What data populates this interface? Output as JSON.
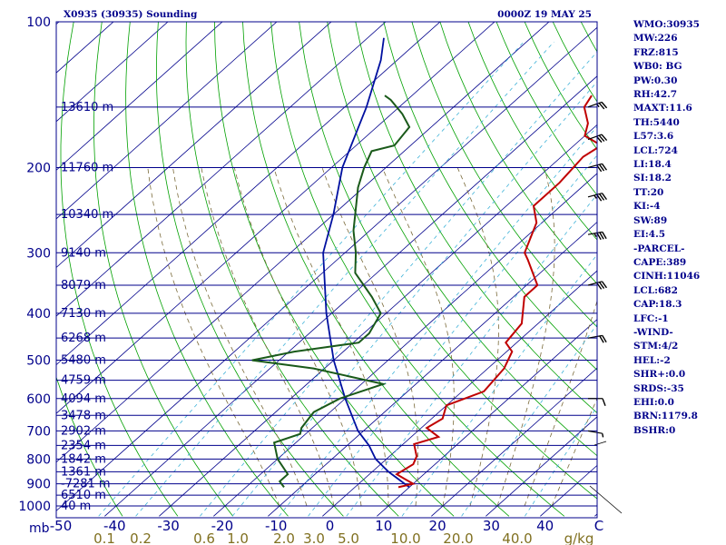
{
  "header": {
    "left": "X0935 (30935) Sounding",
    "right": "0000Z 19 MAY 25"
  },
  "indices": [
    "WMO:30935",
    "MW:226",
    "FRZ:815",
    "WB0: BG",
    "PW:0.30",
    "RH:42.7",
    "MAXT:11.6",
    "TH:5440",
    "L57:3.6",
    "LCL:724",
    "LI:18.4",
    "SI:18.2",
    "TT:20",
    "KI:-4",
    "SW:89",
    "EI:4.5",
    "-PARCEL-",
    "CAPE:389",
    "CINH:11046",
    "LCL:682",
    "CAP:18.3",
    "LFC:-1",
    "-WIND-",
    "STM:4/2",
    "HEL:-2",
    "SHR+:0.0",
    "SRDS:-35",
    "EHI:0.0",
    "BRN:1179.8",
    "BSHR:0"
  ],
  "colors": {
    "frame": "#00008b",
    "isobar": "#00008b",
    "isotherm": "#00008b",
    "dry_adiabat": "#00a000",
    "moist_adiabat": "#7a6a3a",
    "mixing_ratio": "#3fb2d8",
    "temperature": "#c00000",
    "dewpoint": "#1a5a1a",
    "parcel": "#0010a0",
    "wind": "#000000",
    "ticks_temp": "#00008b",
    "ticks_mix": "#807020"
  },
  "chart_data": {
    "type": "skew-t",
    "pressure_axis_labels": [
      "100",
      "200",
      "300",
      "400",
      "500",
      "600",
      "700",
      "800",
      "900",
      "1000"
    ],
    "pressure_axis_units": "mb",
    "temperature_axis_labels": [
      "-50",
      "-40",
      "-30",
      "-20",
      "-10",
      "0",
      "10",
      "20",
      "30",
      "40",
      "C"
    ],
    "mixing_ratio_labels": [
      "0.1",
      "0.2",
      "0.6",
      "1.0",
      "2.0",
      "3.0",
      "5.0",
      "10.0",
      "20.0",
      "40.0",
      "g/kg"
    ],
    "heights": [
      {
        "p": 150,
        "label": "13610 m"
      },
      {
        "p": 200,
        "label": "11760 m"
      },
      {
        "p": 250,
        "label": "10340 m"
      },
      {
        "p": 300,
        "label": "9140 m"
      },
      {
        "p": 350,
        "label": "8079 m"
      },
      {
        "p": 400,
        "label": "7130 m"
      },
      {
        "p": 450,
        "label": "6268 m"
      },
      {
        "p": 500,
        "label": "5480 m"
      },
      {
        "p": 550,
        "label": "4759 m"
      },
      {
        "p": 600,
        "label": "4094 m"
      },
      {
        "p": 650,
        "label": "3478 m"
      },
      {
        "p": 700,
        "label": "2902 m"
      },
      {
        "p": 750,
        "label": "2354 m"
      },
      {
        "p": 800,
        "label": "1842 m"
      },
      {
        "p": 850,
        "label": "1361 m"
      },
      {
        "p": 900,
        "label": "-7281 m"
      },
      {
        "p": 950,
        "label": "6510 m"
      },
      {
        "p": 1000,
        "label": "40 m"
      }
    ],
    "temperature": [
      [
        915,
        8
      ],
      [
        900,
        10
      ],
      [
        880,
        7.5
      ],
      [
        860,
        5
      ],
      [
        820,
        6
      ],
      [
        790,
        5
      ],
      [
        745,
        2
      ],
      [
        720,
        5
      ],
      [
        690,
        1
      ],
      [
        660,
        2
      ],
      [
        620,
        0
      ],
      [
        580,
        4
      ],
      [
        520,
        3
      ],
      [
        480,
        1
      ],
      [
        460,
        -2
      ],
      [
        420,
        -3
      ],
      [
        370,
        -8
      ],
      [
        350,
        -8
      ],
      [
        310,
        -15
      ],
      [
        300,
        -17
      ],
      [
        260,
        -21
      ],
      [
        240,
        -25
      ],
      [
        215,
        -25
      ],
      [
        190,
        -26
      ],
      [
        180,
        -25
      ],
      [
        172,
        -30
      ],
      [
        162,
        -32
      ],
      [
        150,
        -36
      ],
      [
        142,
        -37
      ]
    ],
    "dewpoint": [
      [
        915,
        -13
      ],
      [
        890,
        -15
      ],
      [
        860,
        -15
      ],
      [
        800,
        -20
      ],
      [
        740,
        -24
      ],
      [
        710,
        -21
      ],
      [
        690,
        -22
      ],
      [
        640,
        -23
      ],
      [
        600,
        -21
      ],
      [
        560,
        -16
      ],
      [
        520,
        -32
      ],
      [
        500,
        -45
      ],
      [
        480,
        -39
      ],
      [
        460,
        -29
      ],
      [
        440,
        -29
      ],
      [
        400,
        -31
      ],
      [
        370,
        -36
      ],
      [
        330,
        -44
      ],
      [
        300,
        -48
      ],
      [
        270,
        -53
      ],
      [
        250,
        -56
      ],
      [
        220,
        -61
      ],
      [
        200,
        -64
      ],
      [
        185,
        -66
      ],
      [
        180,
        -63
      ],
      [
        165,
        -64
      ],
      [
        155,
        -68
      ],
      [
        145,
        -73
      ],
      [
        142,
        -75
      ]
    ],
    "parcel": [
      [
        915,
        10
      ],
      [
        850,
        3
      ],
      [
        800,
        -2
      ],
      [
        750,
        -6
      ],
      [
        700,
        -11
      ],
      [
        600,
        -20
      ],
      [
        500,
        -30
      ],
      [
        400,
        -41
      ],
      [
        300,
        -54
      ],
      [
        250,
        -60
      ],
      [
        200,
        -68
      ],
      [
        150,
        -76
      ],
      [
        120,
        -83
      ],
      [
        108,
        -87
      ]
    ],
    "winds": [
      {
        "p": 150,
        "dir": 250,
        "spd": 25
      },
      {
        "p": 175,
        "dir": 250,
        "spd": 30
      },
      {
        "p": 200,
        "dir": 255,
        "spd": 30
      },
      {
        "p": 230,
        "dir": 255,
        "spd": 35
      },
      {
        "p": 275,
        "dir": 260,
        "spd": 35
      },
      {
        "p": 350,
        "dir": 255,
        "spd": 30
      },
      {
        "p": 450,
        "dir": 260,
        "spd": 20
      },
      {
        "p": 600,
        "dir": 270,
        "spd": 10
      },
      {
        "p": 700,
        "dir": 280,
        "spd": 5
      }
    ]
  }
}
